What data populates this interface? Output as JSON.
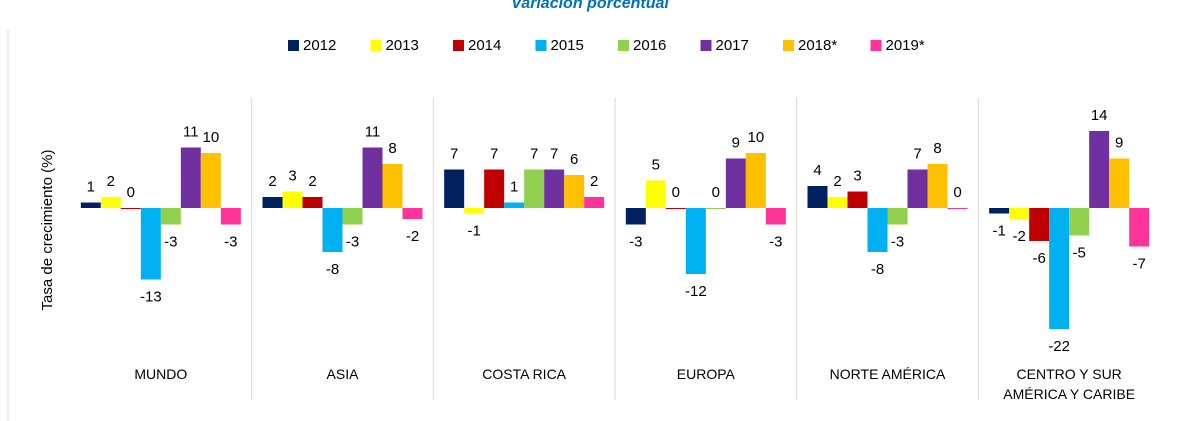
{
  "chart_data": {
    "type": "bar",
    "title": "Variación porcentual",
    "y_label": "Tasa de crecimiento (%)",
    "categories": [
      "MUNDO",
      "ASIA",
      "COSTA RICA",
      "EUROPA",
      "NORTE AMÉRICA",
      "CENTRO Y SUR AMÉRICA Y CARIBE"
    ],
    "legend": "top",
    "series": [
      {
        "name": "2012",
        "color": "#002060",
        "values": [
          1,
          2,
          7,
          -3,
          4,
          -1
        ]
      },
      {
        "name": "2013",
        "color": "#ffff00",
        "values": [
          2,
          3,
          -1,
          5,
          2,
          -2
        ]
      },
      {
        "name": "2014",
        "color": "#c00000",
        "values": [
          0,
          2,
          7,
          0,
          3,
          -6
        ]
      },
      {
        "name": "2015",
        "color": "#00b0f0",
        "values": [
          -13,
          -8,
          1,
          -12,
          -8,
          -22
        ]
      },
      {
        "name": "2016",
        "color": "#92d050",
        "values": [
          -3,
          -3,
          7,
          0,
          -3,
          -5
        ]
      },
      {
        "name": "2017",
        "color": "#7030a0",
        "values": [
          11,
          11,
          7,
          9,
          7,
          14
        ]
      },
      {
        "name": "2018*",
        "color": "#ffc000",
        "values": [
          10,
          8,
          6,
          10,
          8,
          9
        ]
      },
      {
        "name": "2019*",
        "color": "#ff3399",
        "values": [
          -3,
          -2,
          2,
          -3,
          0,
          -7
        ]
      }
    ]
  }
}
